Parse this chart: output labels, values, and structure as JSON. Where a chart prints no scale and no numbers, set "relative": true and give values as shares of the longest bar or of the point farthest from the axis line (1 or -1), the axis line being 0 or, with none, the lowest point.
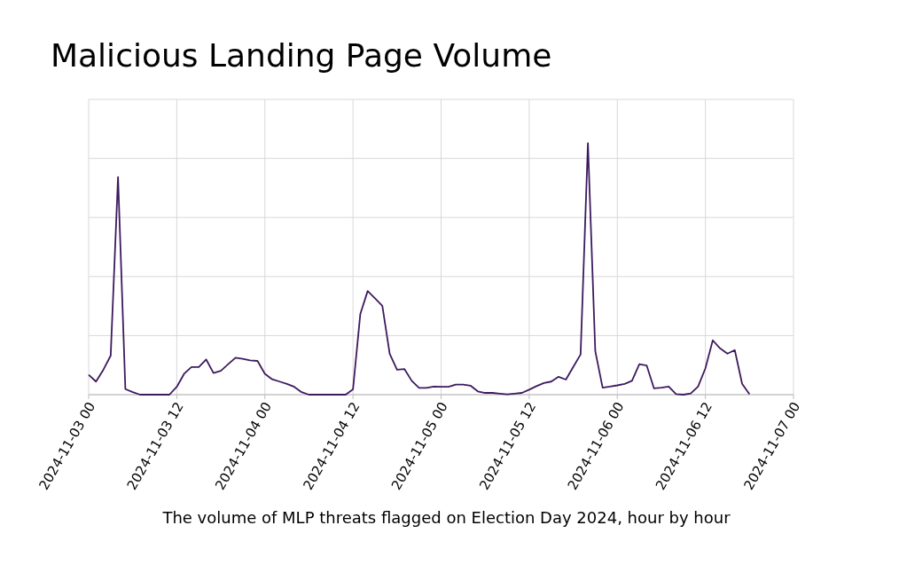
{
  "chart_data": {
    "type": "line",
    "title": "Malicious Landing Page Volume",
    "annotations": [
      "The volume of MLP threats flagged on Election Day 2024, hour by hour"
    ],
    "relative": true,
    "grid": true,
    "marker": "none",
    "line_style": "solid",
    "xlim": [
      "2024-11-03T00:00",
      "2024-11-07T00:00"
    ],
    "xticks": [
      {
        "value": "2024-11-03T00:00",
        "label": "2024-11-03 00"
      },
      {
        "value": "2024-11-03T12:00",
        "label": "2024-11-03 12"
      },
      {
        "value": "2024-11-04T00:00",
        "label": "2024-11-04 00"
      },
      {
        "value": "2024-11-04T12:00",
        "label": "2024-11-04 12"
      },
      {
        "value": "2024-11-05T00:00",
        "label": "2024-11-05 00"
      },
      {
        "value": "2024-11-05T12:00",
        "label": "2024-11-05 12"
      },
      {
        "value": "2024-11-06T00:00",
        "label": "2024-11-06 00"
      },
      {
        "value": "2024-11-06T12:00",
        "label": "2024-11-06 12"
      },
      {
        "value": "2024-11-07T00:00",
        "label": "2024-11-07 00"
      }
    ],
    "x": [
      "2024-11-03T00:00",
      "2024-11-03T01:00",
      "2024-11-03T02:00",
      "2024-11-03T03:00",
      "2024-11-03T04:00",
      "2024-11-03T05:00",
      "2024-11-03T06:00",
      "2024-11-03T07:00",
      "2024-11-03T08:00",
      "2024-11-03T09:00",
      "2024-11-03T10:00",
      "2024-11-03T11:00",
      "2024-11-03T12:00",
      "2024-11-03T13:00",
      "2024-11-03T14:00",
      "2024-11-03T15:00",
      "2024-11-03T16:00",
      "2024-11-03T17:00",
      "2024-11-03T18:00",
      "2024-11-03T19:00",
      "2024-11-03T20:00",
      "2024-11-03T21:00",
      "2024-11-03T22:00",
      "2024-11-03T23:00",
      "2024-11-04T00:00",
      "2024-11-04T01:00",
      "2024-11-04T02:00",
      "2024-11-04T03:00",
      "2024-11-04T04:00",
      "2024-11-04T05:00",
      "2024-11-04T06:00",
      "2024-11-04T07:00",
      "2024-11-04T08:00",
      "2024-11-04T09:00",
      "2024-11-04T10:00",
      "2024-11-04T11:00",
      "2024-11-04T12:00",
      "2024-11-04T13:00",
      "2024-11-04T14:00",
      "2024-11-04T15:00",
      "2024-11-04T16:00",
      "2024-11-04T17:00",
      "2024-11-04T18:00",
      "2024-11-04T19:00",
      "2024-11-04T20:00",
      "2024-11-04T21:00",
      "2024-11-04T22:00",
      "2024-11-04T23:00",
      "2024-11-05T00:00",
      "2024-11-05T01:00",
      "2024-11-05T02:00",
      "2024-11-05T03:00",
      "2024-11-05T04:00",
      "2024-11-05T05:00",
      "2024-11-05T06:00",
      "2024-11-05T07:00",
      "2024-11-05T08:00",
      "2024-11-05T09:00",
      "2024-11-05T10:00",
      "2024-11-05T11:00",
      "2024-11-05T12:00",
      "2024-11-05T13:00",
      "2024-11-05T14:00",
      "2024-11-05T15:00",
      "2024-11-05T16:00",
      "2024-11-05T17:00",
      "2024-11-05T18:00",
      "2024-11-05T19:00",
      "2024-11-05T20:00",
      "2024-11-05T21:00",
      "2024-11-05T22:00",
      "2024-11-05T23:00",
      "2024-11-06T00:00",
      "2024-11-06T01:00",
      "2024-11-06T02:00",
      "2024-11-06T03:00",
      "2024-11-06T04:00",
      "2024-11-06T05:00",
      "2024-11-06T06:00",
      "2024-11-06T07:00",
      "2024-11-06T08:00",
      "2024-11-06T09:00",
      "2024-11-06T10:00",
      "2024-11-06T11:00",
      "2024-11-06T12:00",
      "2024-11-06T13:00",
      "2024-11-06T14:00",
      "2024-11-06T15:00",
      "2024-11-06T16:00",
      "2024-11-06T17:00",
      "2024-11-06T18:00"
    ],
    "series": [
      {
        "color": "#3d1a5e",
        "values": [
          0.079,
          0.052,
          0.099,
          0.155,
          0.865,
          0.022,
          0.01,
          0,
          0,
          0,
          0,
          0,
          0.031,
          0.083,
          0.11,
          0.11,
          0.14,
          0.086,
          0.095,
          0.121,
          0.147,
          0.142,
          0.136,
          0.134,
          0.083,
          0.061,
          0.052,
          0.043,
          0.031,
          0.01,
          0,
          0,
          0,
          0,
          0,
          0,
          0.021,
          0.321,
          0.412,
          0.383,
          0.353,
          0.163,
          0.099,
          0.102,
          0.055,
          0.027,
          0.027,
          0.032,
          0.031,
          0.031,
          0.04,
          0.04,
          0.036,
          0.013,
          0.007,
          0.007,
          0.004,
          0.001,
          0.004,
          0.007,
          0.02,
          0.034,
          0.046,
          0.052,
          0.071,
          0.06,
          0.11,
          0.16,
          1,
          0.173,
          0.028,
          0.032,
          0.037,
          0.043,
          0.055,
          0.121,
          0.116,
          0.025,
          0.028,
          0.032,
          0.002,
          0,
          0.005,
          0.032,
          0.105,
          0.216,
          0.184,
          0.163,
          0.177,
          0.043,
          0.002
        ]
      }
    ]
  }
}
